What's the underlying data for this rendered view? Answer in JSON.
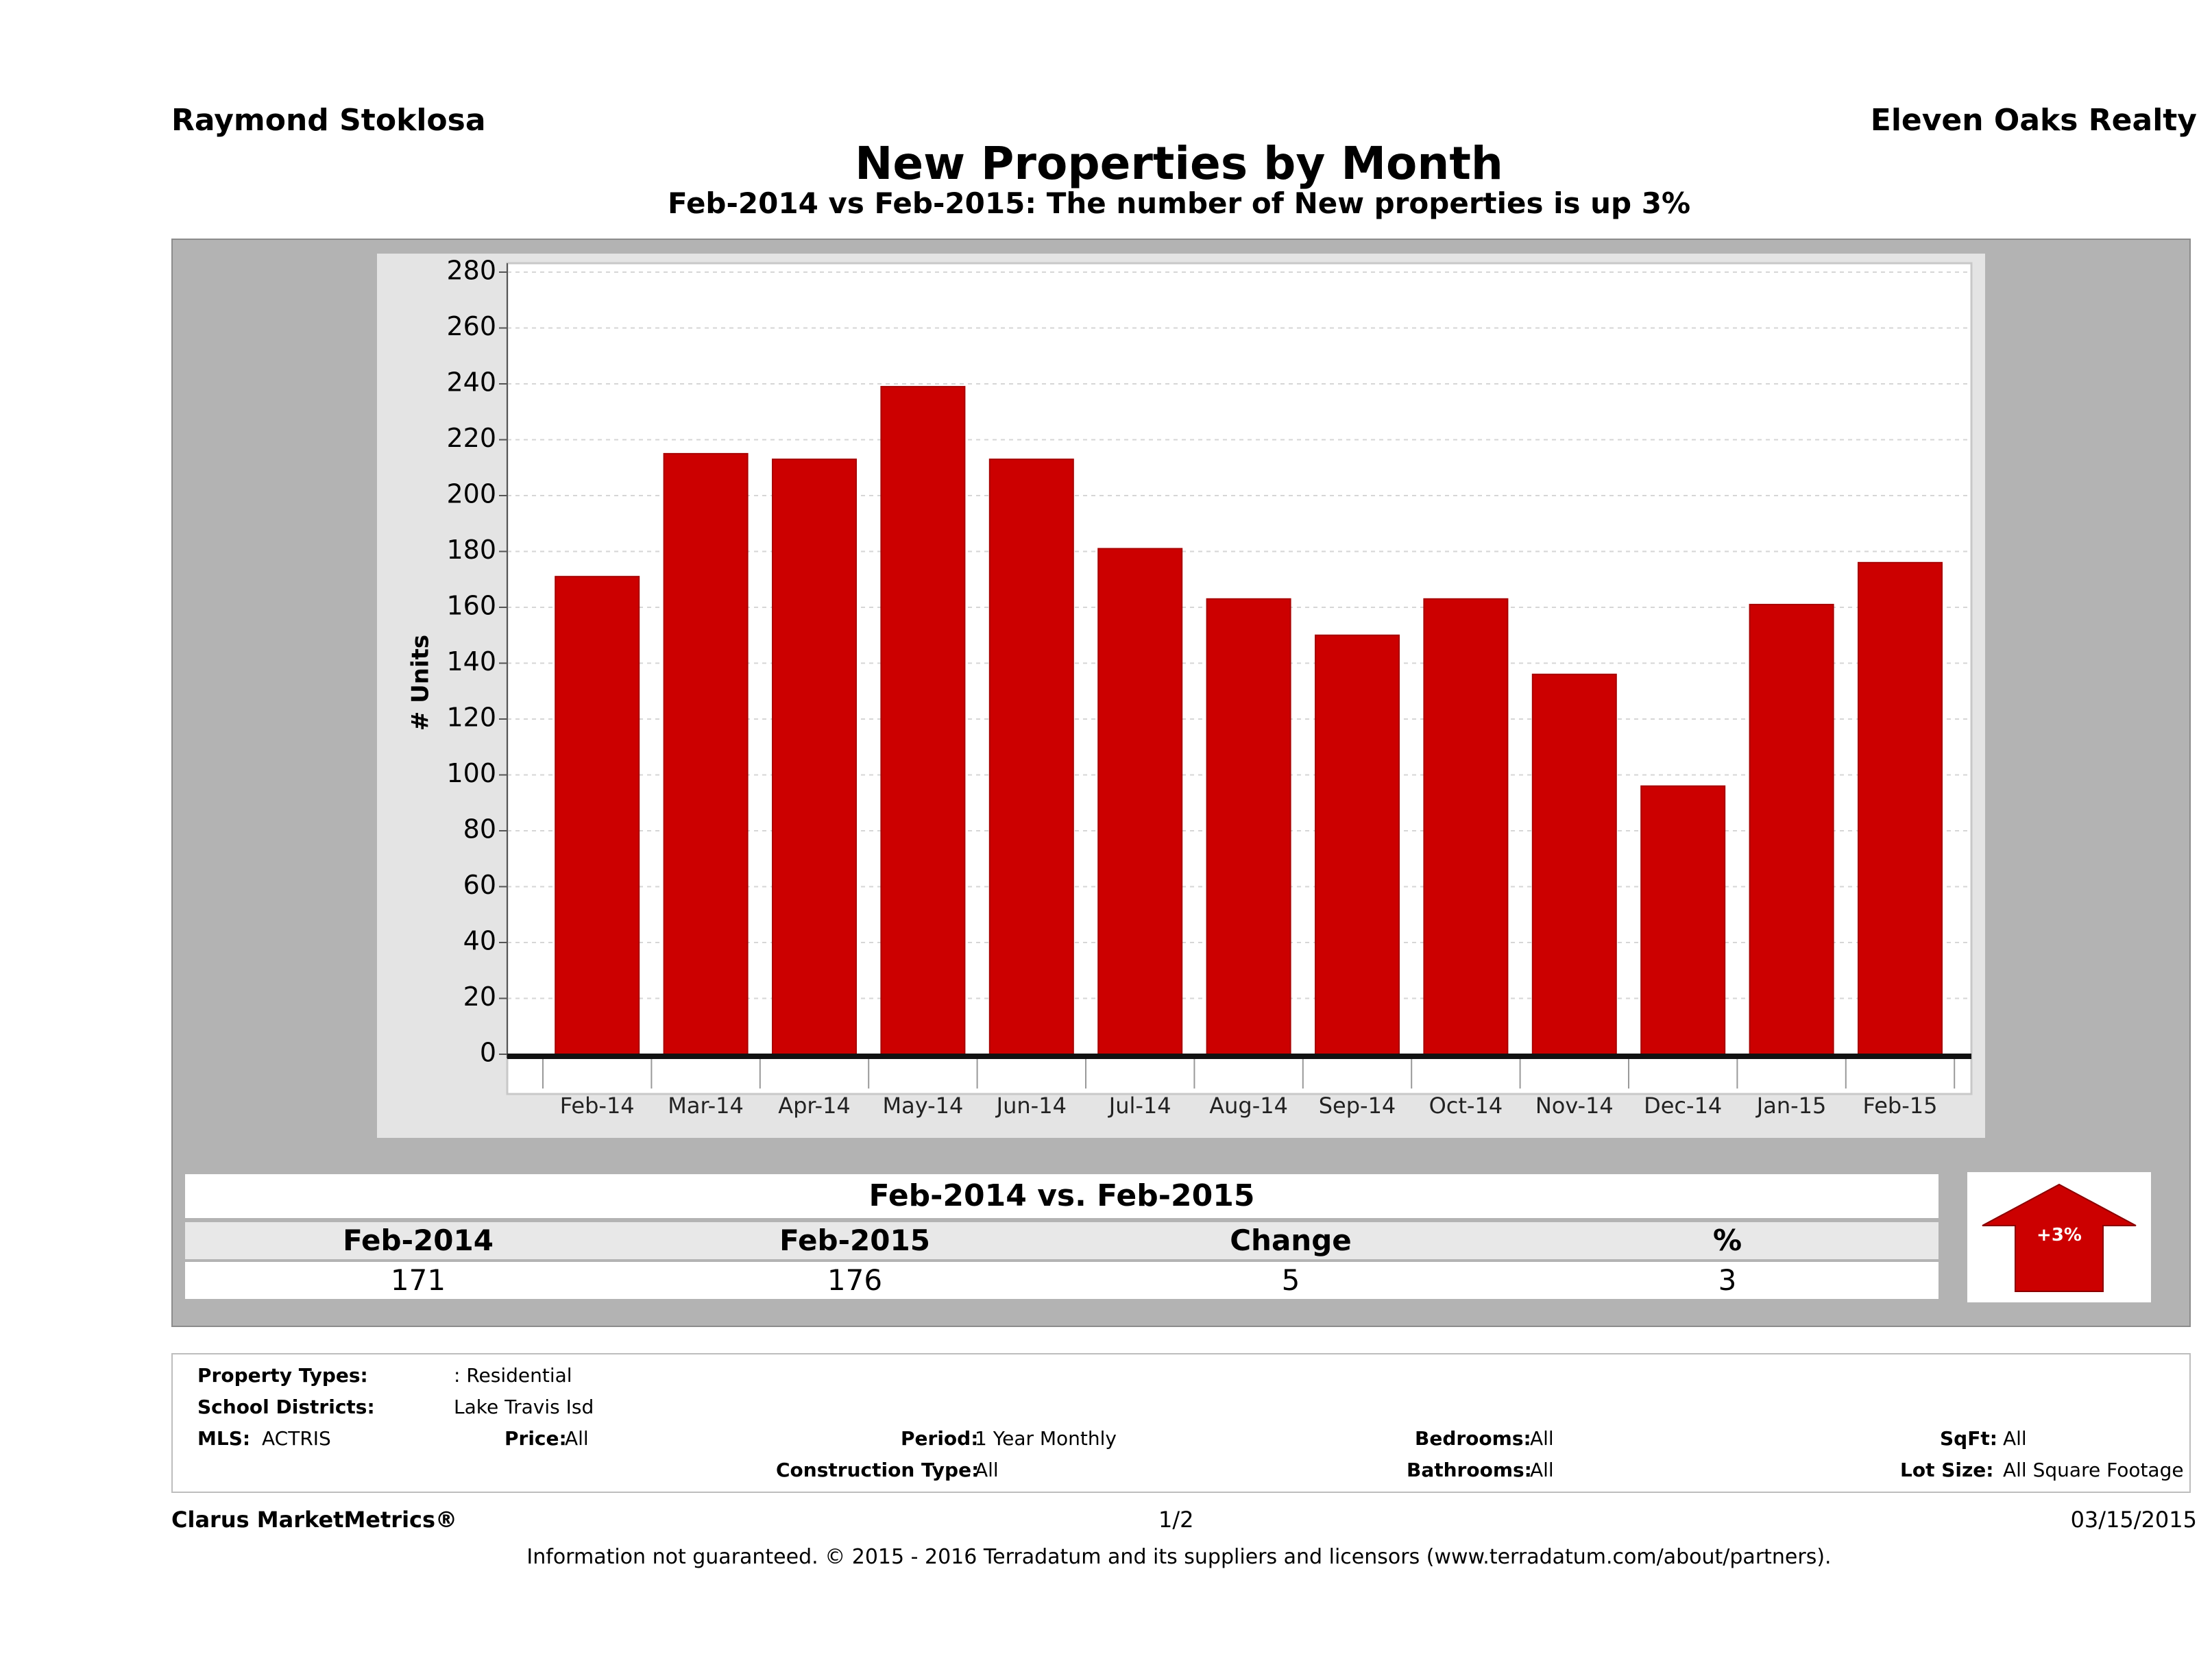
{
  "header": {
    "agent_name": "Raymond Stoklosa",
    "company": "Eleven Oaks Realty"
  },
  "title": "New Properties by Month",
  "subtitle": "Feb-2014 vs Feb-2015: The number of New  properties is up 3%",
  "chart_data": {
    "type": "bar",
    "ylabel": "# Units",
    "xlabel": "",
    "ylim": [
      0,
      280
    ],
    "yticks": [
      0,
      20,
      40,
      60,
      80,
      100,
      120,
      140,
      160,
      180,
      200,
      220,
      240,
      260,
      280
    ],
    "grid": true,
    "bar_color": "#cc0000",
    "categories": [
      "Feb-14",
      "Mar-14",
      "Apr-14",
      "May-14",
      "Jun-14",
      "Jul-14",
      "Aug-14",
      "Sep-14",
      "Oct-14",
      "Nov-14",
      "Dec-14",
      "Jan-15",
      "Feb-15"
    ],
    "values": [
      171,
      215,
      213,
      239,
      213,
      181,
      163,
      150,
      163,
      136,
      96,
      161,
      176
    ]
  },
  "summary": {
    "title": "Feb-2014 vs. Feb-2015",
    "headers": [
      "Feb-2014",
      "Feb-2015",
      "Change",
      "%"
    ],
    "values": [
      "171",
      "176",
      "5",
      "3"
    ],
    "badge": "+3%",
    "badge_color": "#cc0000"
  },
  "filters": {
    "property_types_label": "Property Types:",
    "property_types_value": ": Residential",
    "school_districts_label": "School Districts:",
    "school_districts_value": "Lake Travis Isd",
    "mls_label": "MLS:",
    "mls_value": "ACTRIS",
    "price_label": "Price:",
    "price_value": "All",
    "period_label": "Period:",
    "period_value": "1 Year Monthly",
    "construction_label": "Construction Type:",
    "construction_value": "All",
    "bedrooms_label": "Bedrooms:",
    "bedrooms_value": "All",
    "bathrooms_label": "Bathrooms:",
    "bathrooms_value": "All",
    "sqft_label": "SqFt:",
    "sqft_value": "All",
    "lot_label": "Lot Size:",
    "lot_value": "All Square Footage"
  },
  "footer": {
    "brand": "Clarus MarketMetrics®",
    "page": "1/2",
    "date": "03/15/2015",
    "disclaimer": "Information not guaranteed. © 2015 - 2016 Terradatum and its suppliers and licensors (www.terradatum.com/about/partners)."
  }
}
